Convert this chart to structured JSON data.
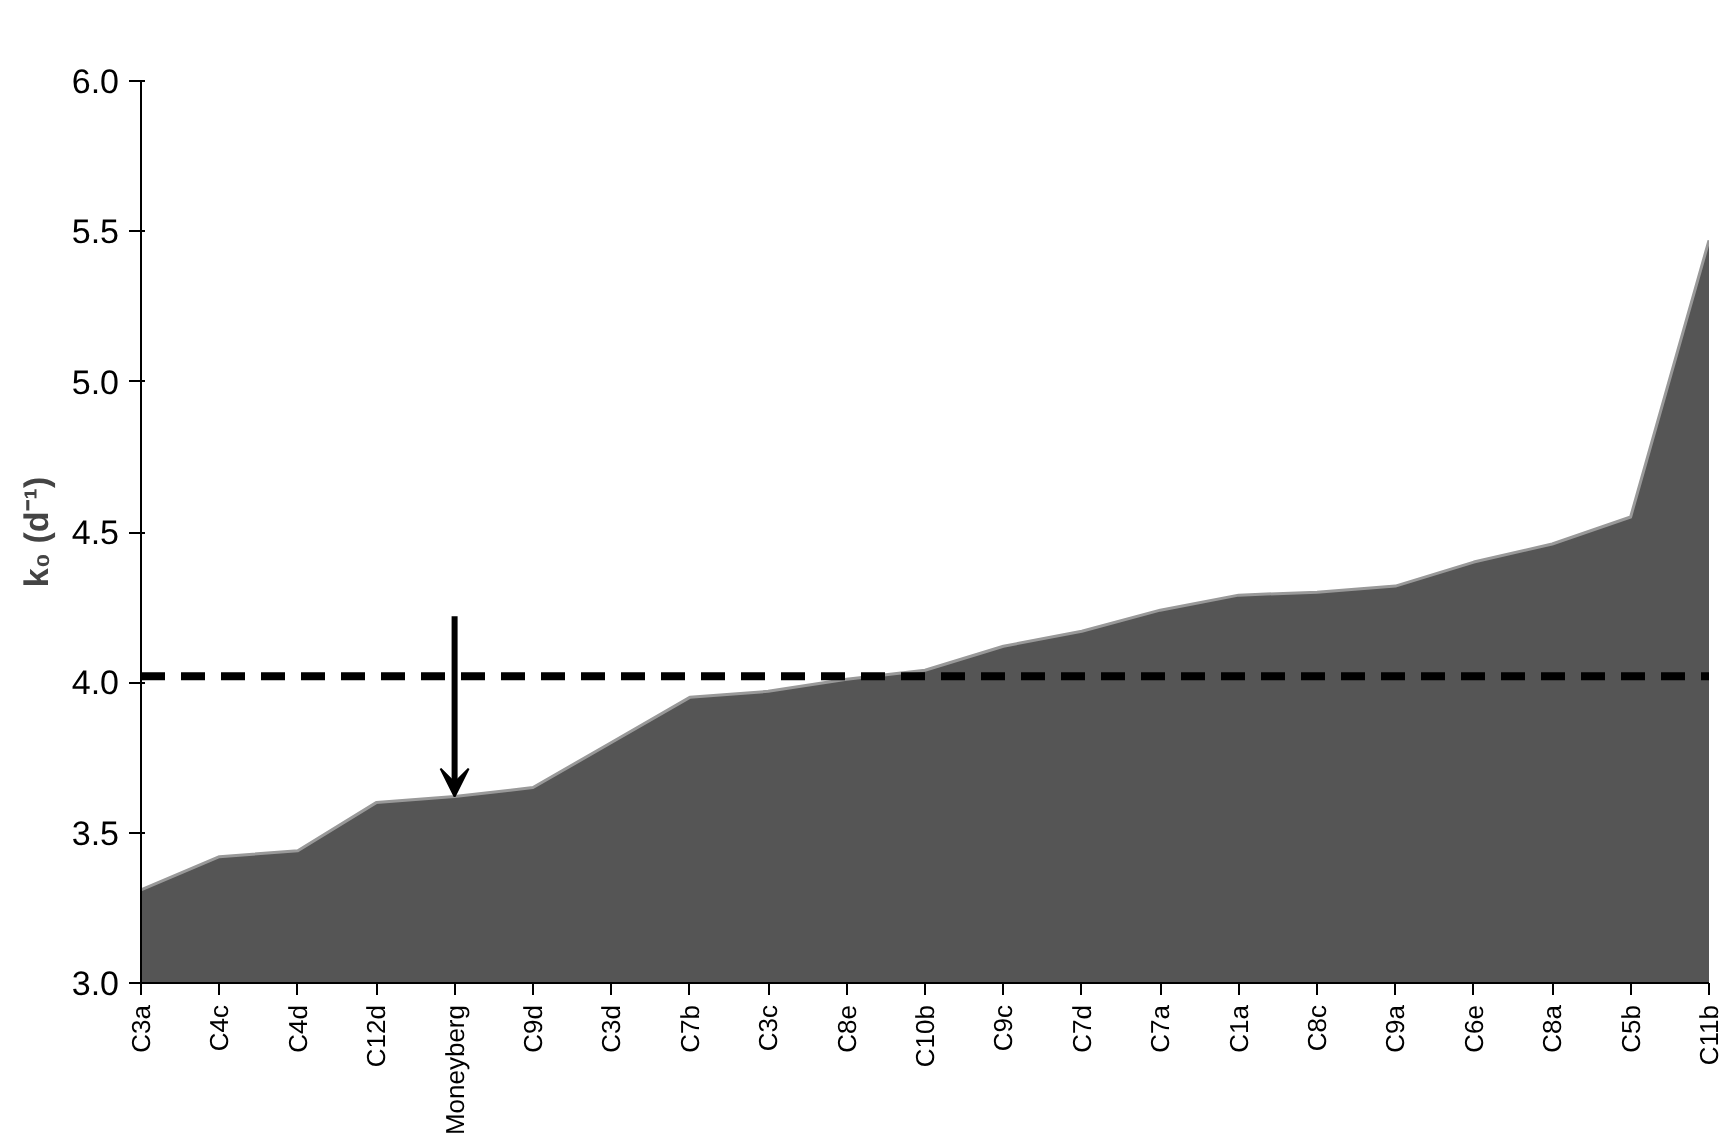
{
  "chart_data": {
    "type": "area",
    "ylabel": "k₀ (d⁻¹)",
    "categories": [
      "C3a",
      "C4c",
      "C4d",
      "C12d",
      "Moneyberg",
      "C9d",
      "C3d",
      "C7b",
      "C3c",
      "C8e",
      "C10b",
      "C9c",
      "C7d",
      "C7a",
      "C1a",
      "C8c",
      "C9a",
      "C6e",
      "C8a",
      "C5b",
      "C11b"
    ],
    "series": [
      {
        "color": "#555555",
        "values": [
          3.31,
          3.42,
          3.44,
          3.6,
          3.62,
          3.65,
          3.8,
          3.95,
          3.97,
          4.01,
          4.04,
          4.12,
          4.17,
          4.24,
          4.29,
          4.3,
          4.32,
          4.4,
          4.46,
          4.55,
          5.47
        ]
      }
    ],
    "ylim": [
      3.0,
      6.0
    ],
    "yticks": [
      {
        "value": 3.0,
        "label": "3.0"
      },
      3.5,
      {
        "value": 4.0,
        "label": "4.0"
      },
      4.5,
      {
        "value": 5.0,
        "label": "5.0"
      },
      5.5,
      {
        "value": 6.0,
        "label": "6.0"
      }
    ],
    "ref_lines": [
      {
        "axis": "y",
        "value": 4.02,
        "color": "#000000",
        "line_style": "dashed"
      }
    ],
    "grid": false
  }
}
